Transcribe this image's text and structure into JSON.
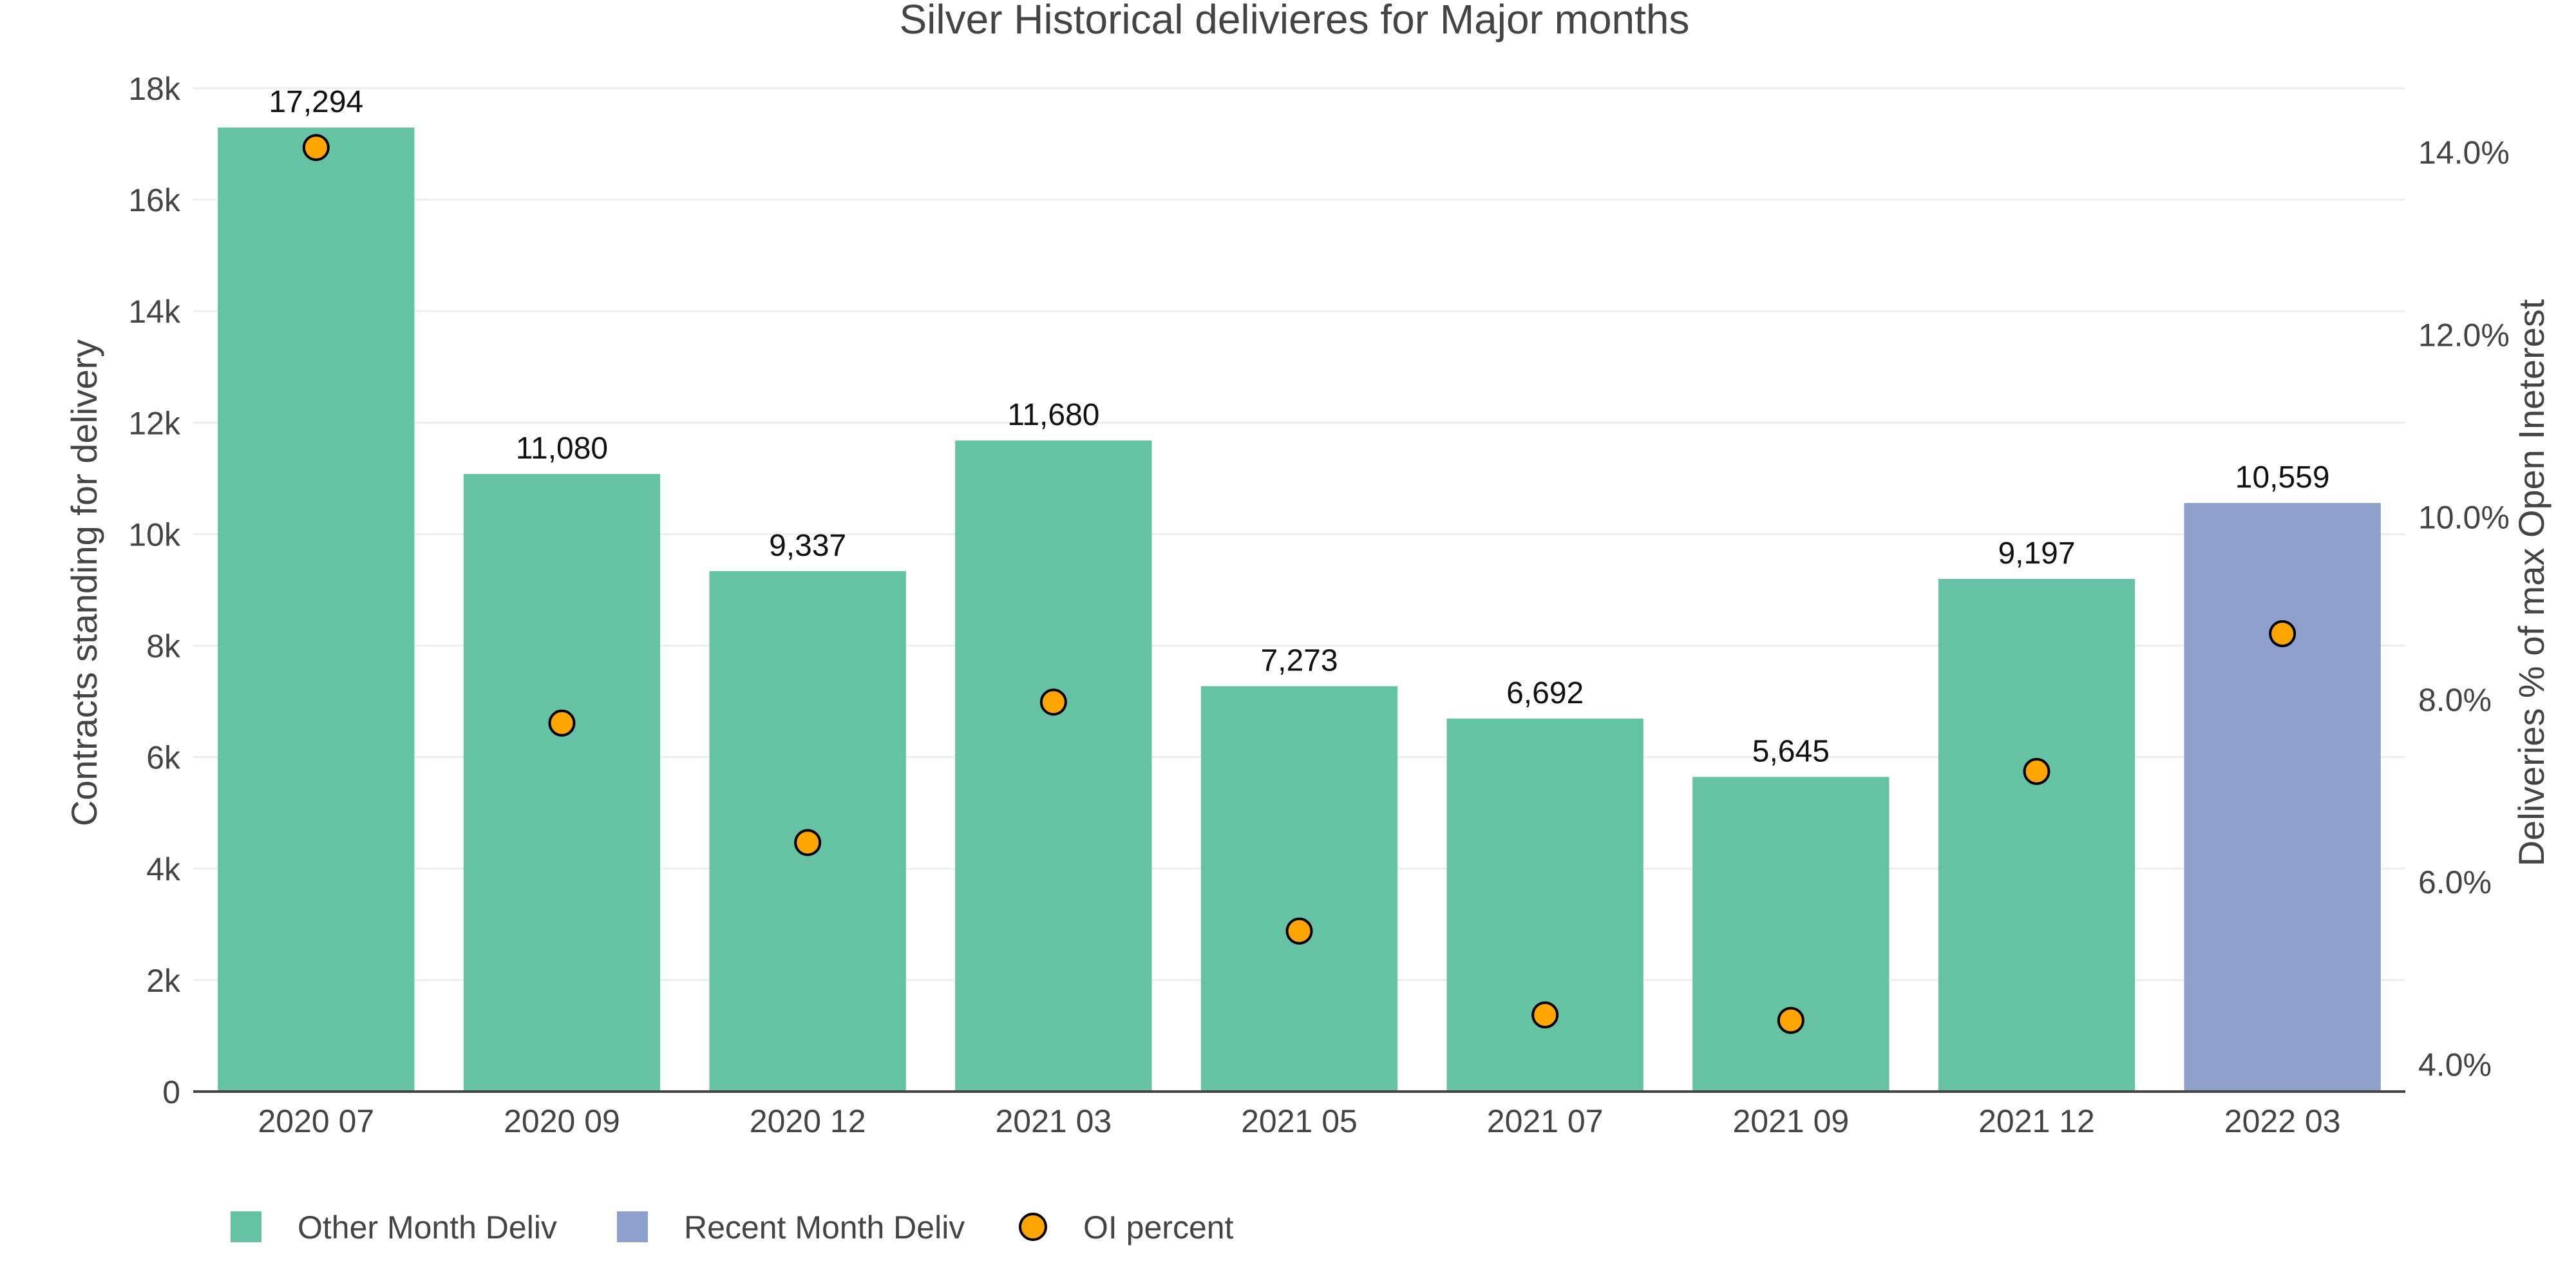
{
  "chart_data": {
    "type": "bar",
    "title": "Silver Historical delivieres for Major months",
    "categories": [
      "2020 07",
      "2020 09",
      "2020 12",
      "2021 03",
      "2021 05",
      "2021 07",
      "2021 09",
      "2021 12",
      "2022 03"
    ],
    "series": [
      {
        "name": "Other Month Deliv",
        "type": "bar",
        "axis": "left",
        "color": "#66c2a5",
        "values": [
          17294,
          11080,
          9337,
          11680,
          7273,
          6692,
          5645,
          9197,
          null
        ]
      },
      {
        "name": "Recent Month Deliv",
        "type": "bar",
        "axis": "left",
        "color": "#8da0cb",
        "values": [
          null,
          null,
          null,
          null,
          null,
          null,
          null,
          null,
          10559
        ]
      },
      {
        "name": "OI percent",
        "type": "scatter",
        "axis": "right",
        "color": "#ffa500",
        "values": [
          14.05,
          7.74,
          6.43,
          7.97,
          5.46,
          4.54,
          4.48,
          7.21,
          8.72
        ]
      }
    ],
    "data_labels": [
      "17,294",
      "11,080",
      "9,337",
      "11,680",
      "7,273",
      "6,692",
      "5,645",
      "9,197",
      "10,559"
    ],
    "ylabel": "Contracts standing for delivery",
    "ylim": [
      0,
      18000
    ],
    "yticks": [
      0,
      2000,
      4000,
      6000,
      8000,
      10000,
      12000,
      14000,
      16000,
      18000
    ],
    "ytick_labels": [
      "0",
      "2k",
      "4k",
      "6k",
      "8k",
      "10k",
      "12k",
      "14k",
      "16k",
      "18k"
    ],
    "y2label": "Deliveries % of max Open Ineterest",
    "y2lim": [
      3.7,
      14.7
    ],
    "y2ticks": [
      4,
      6,
      8,
      10,
      12,
      14
    ],
    "y2tick_labels": [
      "4.0%",
      "6.0%",
      "8.0%",
      "10.0%",
      "12.0%",
      "14.0%"
    ],
    "grid": true,
    "legend_position": "bottom-left"
  }
}
